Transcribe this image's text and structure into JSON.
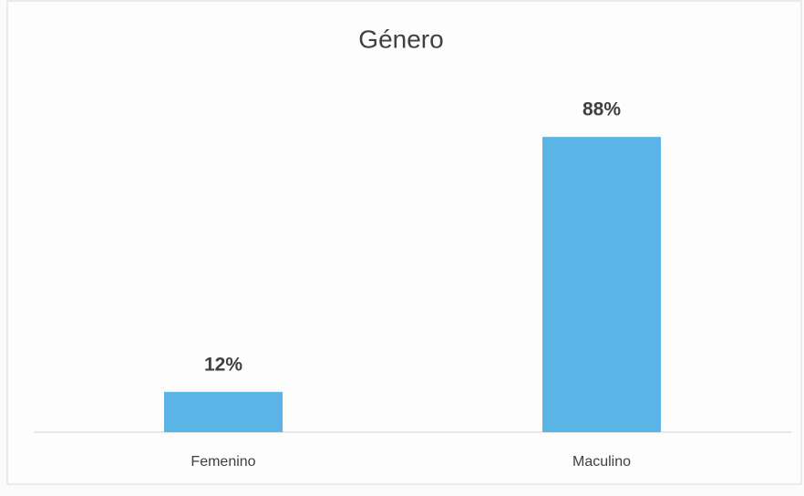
{
  "chart_data": {
    "type": "bar",
    "title": "Género",
    "categories": [
      "Femenino",
      "Maculino"
    ],
    "values": [
      12,
      88
    ],
    "value_labels": [
      "12%",
      "88%"
    ],
    "color": "#5ab4e6"
  }
}
